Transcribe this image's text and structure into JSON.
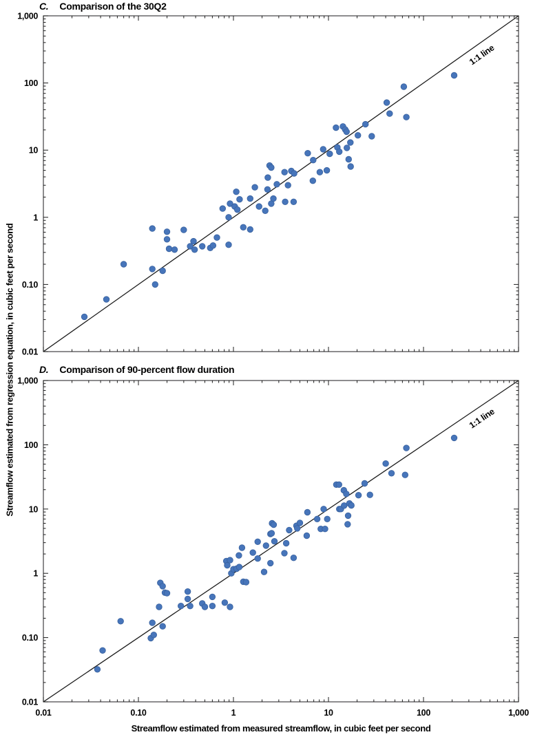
{
  "figure": {
    "y_axis_label": "Streamflow estimated from regression equation, in cubic feet per second",
    "x_axis_label": "Streamflow estimated from measured streamflow, in cubic feet per second",
    "colors": {
      "point_fill": "#4775ba",
      "point_edge": "#38619e",
      "line": "#1c1c1c",
      "frame": "#414042",
      "text": "#000000",
      "background": "#ffffff"
    }
  },
  "chart_data": [
    {
      "type": "scatter",
      "panel_letter": "C.",
      "title": "Comparison of the 30Q2",
      "x_scale": "log",
      "y_scale": "log",
      "xlim": [
        0.01,
        1000
      ],
      "ylim": [
        0.01,
        1000
      ],
      "tick_values": [
        0.01,
        0.1,
        1,
        10,
        100,
        1000
      ],
      "tick_labels": [
        "0.01",
        "0.10",
        "1",
        "10",
        "100",
        "1,000"
      ],
      "show_x_tick_labels": false,
      "reference_line": {
        "label": "1:1 line",
        "from": [
          0.01,
          0.01
        ],
        "to": [
          1000,
          1000
        ]
      },
      "points": [
        [
          0.027,
          0.033
        ],
        [
          0.046,
          0.06
        ],
        [
          0.07,
          0.2
        ],
        [
          0.14,
          0.68
        ],
        [
          0.14,
          0.17
        ],
        [
          0.15,
          0.1
        ],
        [
          0.18,
          0.16
        ],
        [
          0.2,
          0.61
        ],
        [
          0.2,
          0.47
        ],
        [
          0.21,
          0.34
        ],
        [
          0.24,
          0.33
        ],
        [
          0.3,
          0.65
        ],
        [
          0.35,
          0.37
        ],
        [
          0.38,
          0.44
        ],
        [
          0.39,
          0.33
        ],
        [
          0.47,
          0.37
        ],
        [
          0.57,
          0.35
        ],
        [
          0.61,
          0.38
        ],
        [
          0.67,
          0.5
        ],
        [
          0.77,
          1.35
        ],
        [
          0.89,
          1.0
        ],
        [
          0.89,
          0.39
        ],
        [
          0.92,
          1.6
        ],
        [
          1.03,
          1.45
        ],
        [
          1.1,
          1.3
        ],
        [
          1.07,
          2.4
        ],
        [
          1.16,
          1.85
        ],
        [
          1.27,
          0.71
        ],
        [
          1.5,
          0.66
        ],
        [
          1.5,
          1.9
        ],
        [
          1.68,
          2.8
        ],
        [
          1.86,
          1.45
        ],
        [
          2.16,
          1.25
        ],
        [
          2.28,
          2.6
        ],
        [
          2.3,
          3.9
        ],
        [
          2.4,
          5.9
        ],
        [
          2.5,
          5.5
        ],
        [
          2.5,
          1.6
        ],
        [
          2.63,
          1.9
        ],
        [
          2.86,
          3.1
        ],
        [
          3.45,
          4.7
        ],
        [
          3.5,
          1.7
        ],
        [
          3.75,
          3.0
        ],
        [
          4.06,
          4.9
        ],
        [
          4.35,
          4.5
        ],
        [
          4.3,
          1.7
        ],
        [
          6.05,
          9.0
        ],
        [
          6.9,
          7.1
        ],
        [
          6.85,
          3.5
        ],
        [
          8.1,
          4.7
        ],
        [
          8.8,
          10.3
        ],
        [
          9.6,
          5.0
        ],
        [
          10.3,
          8.8
        ],
        [
          12.0,
          21.6
        ],
        [
          12.4,
          11.0
        ],
        [
          13.0,
          9.5
        ],
        [
          14.2,
          22.5
        ],
        [
          15.0,
          20.3
        ],
        [
          15.5,
          18.8
        ],
        [
          15.6,
          10.8
        ],
        [
          16.3,
          7.3
        ],
        [
          17.0,
          13.0
        ],
        [
          17.1,
          5.7
        ],
        [
          20.4,
          16.6
        ],
        [
          24.5,
          24.3
        ],
        [
          28.5,
          16.1
        ],
        [
          41,
          51
        ],
        [
          44,
          35
        ],
        [
          62,
          88
        ],
        [
          66,
          31
        ],
        [
          210,
          130
        ]
      ]
    },
    {
      "type": "scatter",
      "panel_letter": "D.",
      "title": "Comparison of 90-percent flow duration",
      "x_scale": "log",
      "y_scale": "log",
      "xlim": [
        0.01,
        1000
      ],
      "ylim": [
        0.01,
        1000
      ],
      "tick_values": [
        0.01,
        0.1,
        1,
        10,
        100,
        1000
      ],
      "tick_labels": [
        "0.01",
        "0.10",
        "1",
        "10",
        "100",
        "1,000"
      ],
      "show_x_tick_labels": true,
      "reference_line": {
        "label": "1:1 line",
        "from": [
          0.01,
          0.01
        ],
        "to": [
          1000,
          1000
        ]
      },
      "points": [
        [
          0.037,
          0.032
        ],
        [
          0.042,
          0.063
        ],
        [
          0.065,
          0.18
        ],
        [
          0.135,
          0.098
        ],
        [
          0.145,
          0.11
        ],
        [
          0.14,
          0.17
        ],
        [
          0.165,
          0.3
        ],
        [
          0.17,
          0.71
        ],
        [
          0.18,
          0.63
        ],
        [
          0.18,
          0.15
        ],
        [
          0.19,
          0.5
        ],
        [
          0.2,
          0.49
        ],
        [
          0.28,
          0.31
        ],
        [
          0.33,
          0.52
        ],
        [
          0.33,
          0.4
        ],
        [
          0.35,
          0.31
        ],
        [
          0.47,
          0.34
        ],
        [
          0.5,
          0.3
        ],
        [
          0.6,
          0.43
        ],
        [
          0.6,
          0.31
        ],
        [
          0.81,
          0.35
        ],
        [
          0.84,
          1.55
        ],
        [
          0.86,
          1.33
        ],
        [
          0.92,
          1.6
        ],
        [
          0.92,
          0.3
        ],
        [
          0.95,
          1.0
        ],
        [
          1.0,
          1.16
        ],
        [
          1.08,
          1.18
        ],
        [
          1.15,
          1.25
        ],
        [
          1.14,
          1.9
        ],
        [
          1.23,
          2.5
        ],
        [
          1.27,
          0.74
        ],
        [
          1.36,
          0.73
        ],
        [
          1.6,
          2.1
        ],
        [
          1.8,
          3.1
        ],
        [
          1.8,
          1.7
        ],
        [
          2.1,
          1.05
        ],
        [
          2.2,
          2.7
        ],
        [
          2.45,
          1.44
        ],
        [
          2.45,
          4.1
        ],
        [
          2.52,
          4.2
        ],
        [
          2.55,
          6.0
        ],
        [
          2.65,
          5.7
        ],
        [
          2.7,
          3.15
        ],
        [
          3.44,
          2.06
        ],
        [
          3.59,
          2.94
        ],
        [
          3.86,
          4.7
        ],
        [
          4.3,
          1.74
        ],
        [
          4.6,
          5.5
        ],
        [
          4.7,
          5.0
        ],
        [
          5.0,
          6.1
        ],
        [
          5.9,
          3.85
        ],
        [
          6.0,
          8.9
        ],
        [
          7.6,
          7.0
        ],
        [
          8.3,
          4.9
        ],
        [
          8.9,
          10.0
        ],
        [
          9.2,
          4.9
        ],
        [
          9.7,
          7.0
        ],
        [
          12.1,
          24
        ],
        [
          12.9,
          24
        ],
        [
          13.0,
          10.0
        ],
        [
          13.5,
          10.0
        ],
        [
          14.5,
          19.6
        ],
        [
          15.4,
          17.2
        ],
        [
          14.6,
          11.3
        ],
        [
          16.1,
          7.9
        ],
        [
          15.9,
          5.8
        ],
        [
          16.6,
          12.2
        ],
        [
          17.4,
          11.4
        ],
        [
          20.7,
          16.4
        ],
        [
          24,
          25.1
        ],
        [
          27.3,
          16.6
        ],
        [
          40,
          51
        ],
        [
          46,
          36
        ],
        [
          64,
          34
        ],
        [
          66,
          89
        ],
        [
          210,
          128
        ]
      ]
    }
  ]
}
